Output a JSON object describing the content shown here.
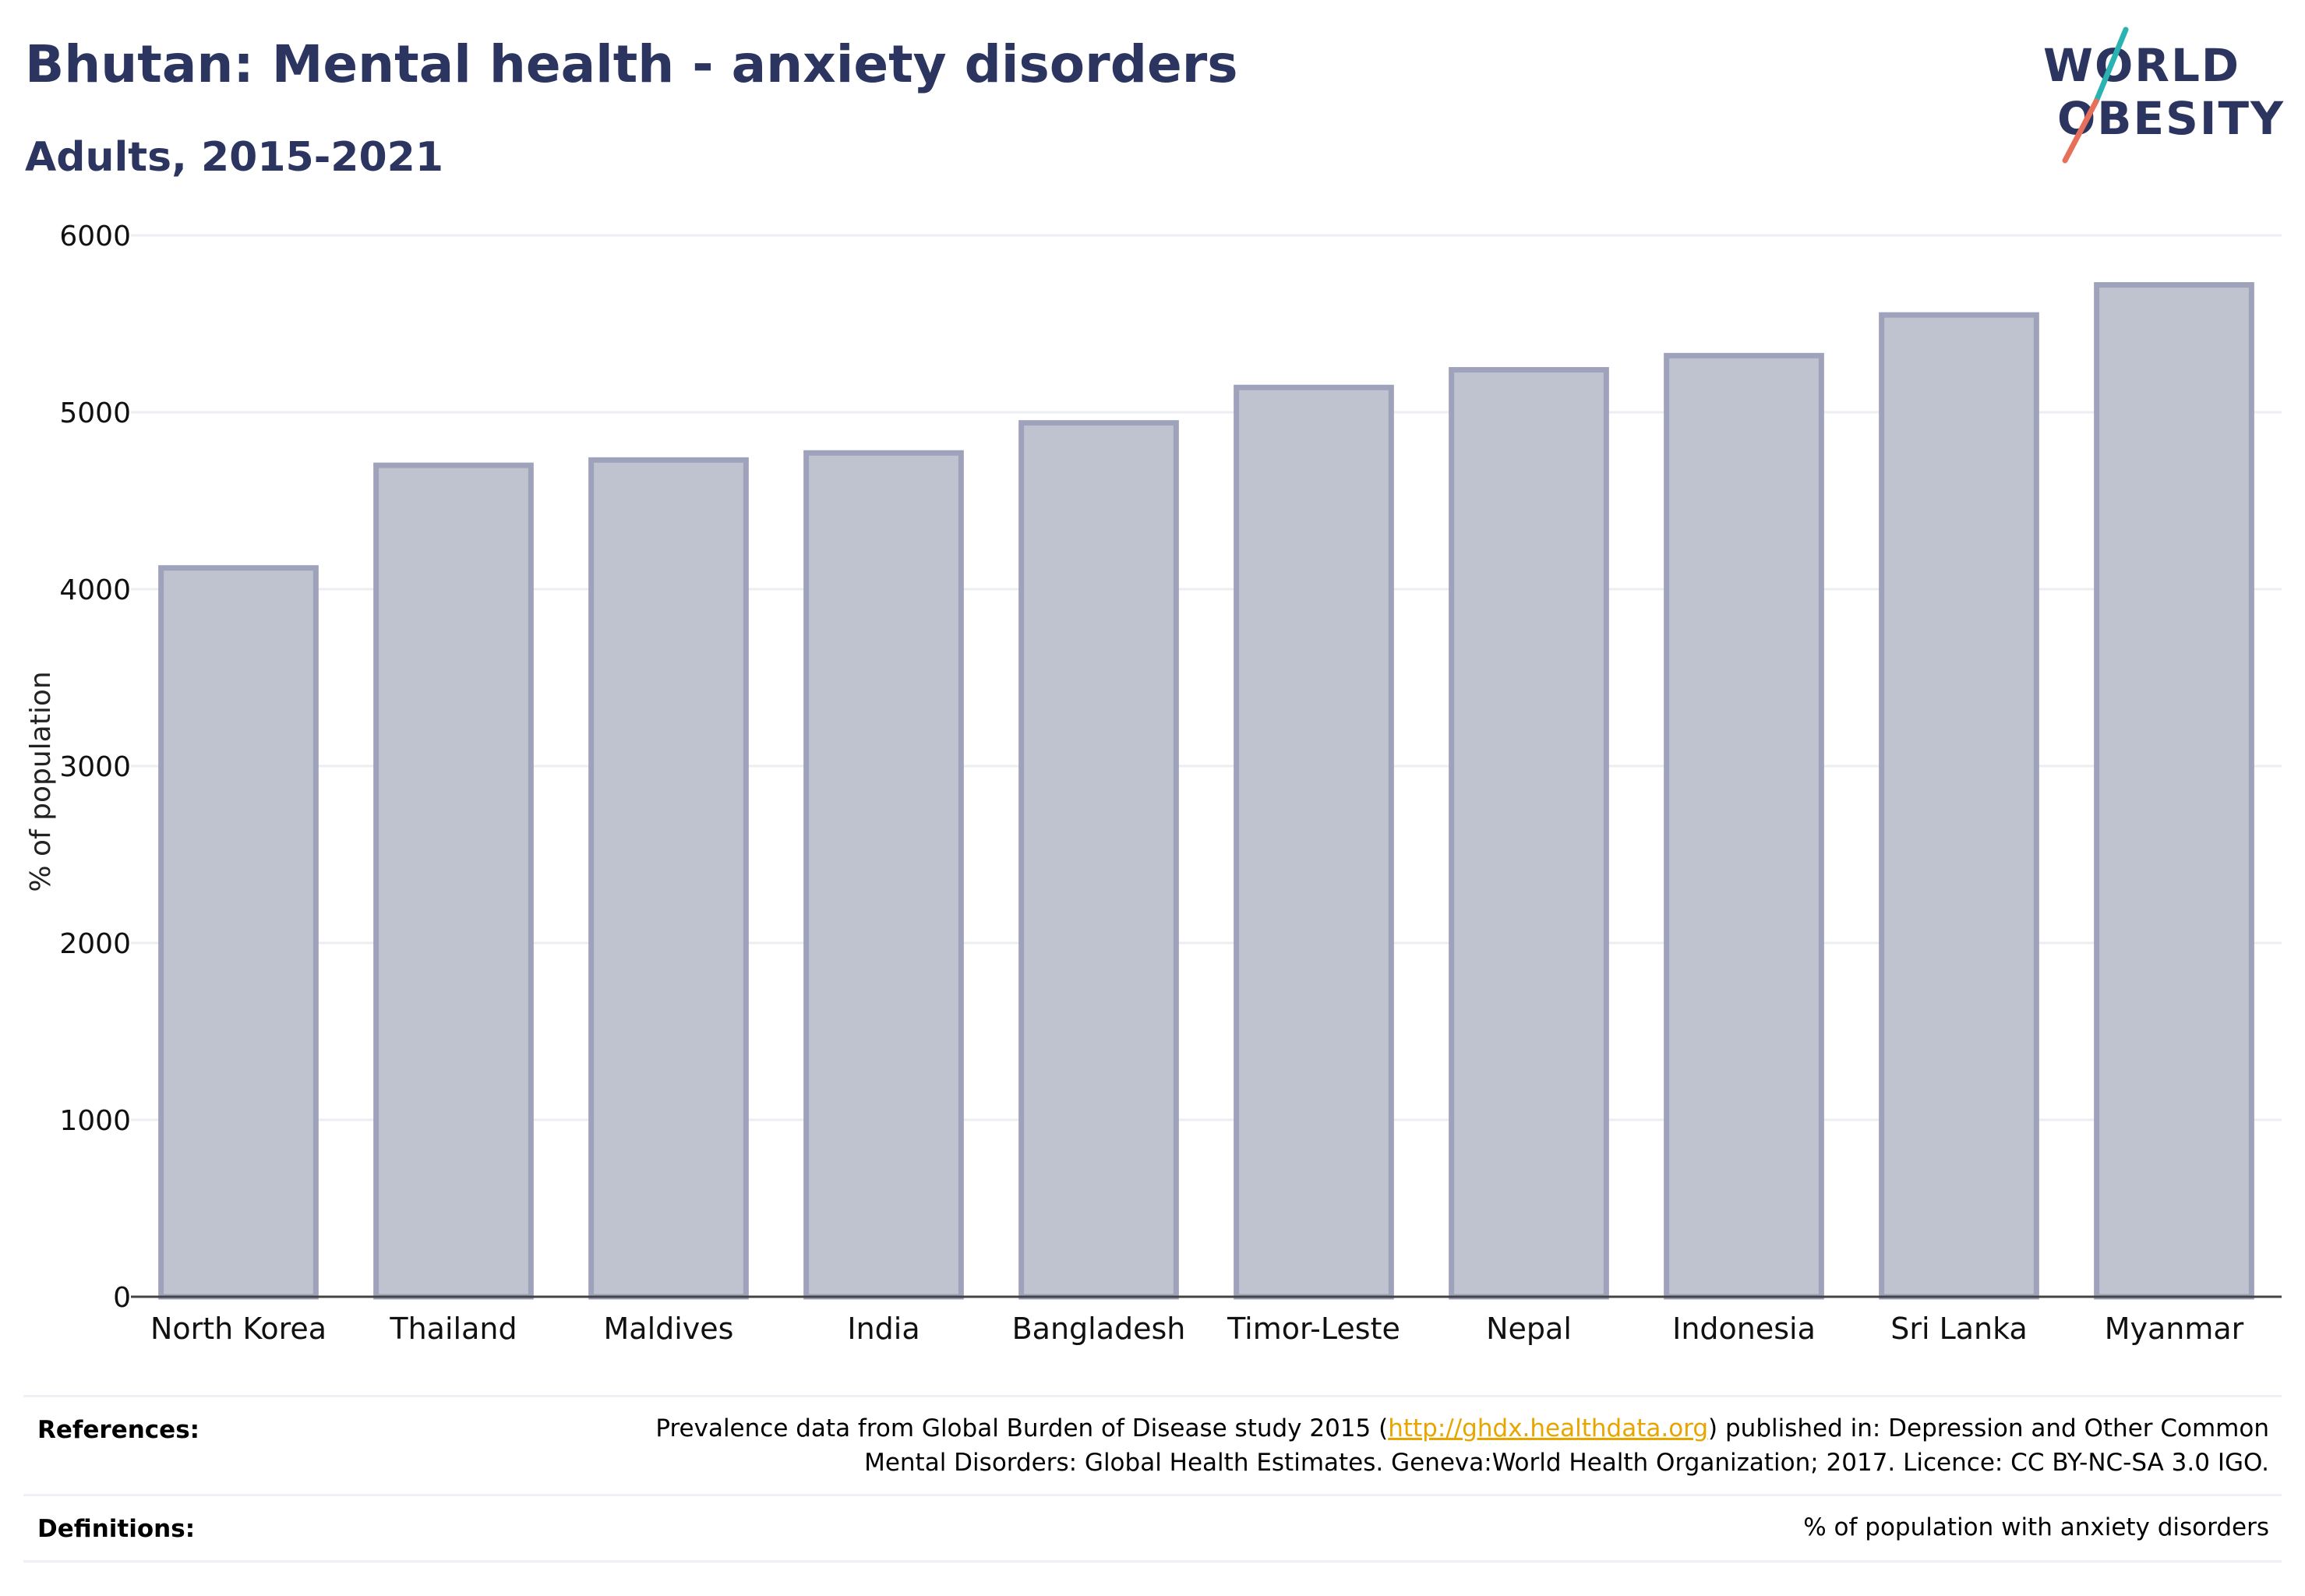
{
  "header": {
    "title": "Bhutan: Mental health - anxiety disorders",
    "subtitle": "Adults, 2015-2021"
  },
  "logo": {
    "line1": "WORLD",
    "line2": "OBESITY",
    "colors": {
      "text": "#2b3560",
      "slash_top": "#2ab3b1",
      "slash_bottom": "#e8705a"
    }
  },
  "chart_data": {
    "type": "bar",
    "categories": [
      "North Korea",
      "Thailand",
      "Maldives",
      "India",
      "Bangladesh",
      "Timor-Leste",
      "Nepal",
      "Indonesia",
      "Sri Lanka",
      "Myanmar"
    ],
    "values": [
      4120,
      4700,
      4730,
      4770,
      4940,
      5140,
      5240,
      5320,
      5550,
      5720
    ],
    "ylabel": "% of population",
    "xlabel": "",
    "ylim": [
      0,
      6000
    ],
    "yticks": [
      0,
      1000,
      2000,
      3000,
      4000,
      5000,
      6000
    ],
    "grid": true,
    "legend": "none",
    "colors": {
      "bar_fill": "#bfc3d0",
      "bar_stroke": "#9ea3bb",
      "grid": "#eceef3",
      "axis": "#444444"
    }
  },
  "footer": {
    "references_label": "References:",
    "references_pre": "Prevalence data from Global Burden of Disease study 2015 (",
    "references_link": "http://ghdx.healthdata.org",
    "references_post": ") published in: Depression and Other Common",
    "references_line2": "Mental Disorders: Global Health Estimates. Geneva:World Health Organization; 2017. Licence: CC BY-NC-SA 3.0 IGO.",
    "definitions_label": "Definitions:",
    "definitions_text": "% of population with anxiety disorders",
    "link_color": "#e8a500"
  }
}
